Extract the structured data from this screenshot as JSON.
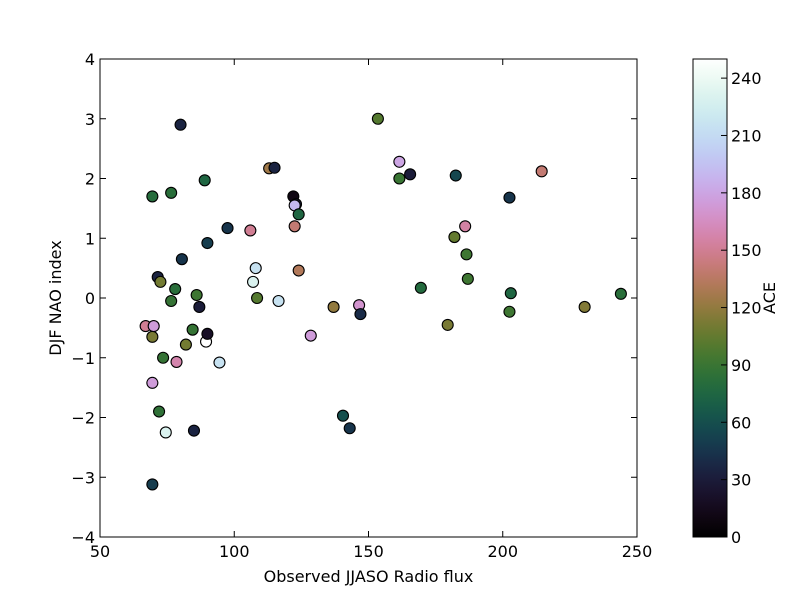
{
  "chart_data": {
    "type": "scatter",
    "xlabel": "Observed JJASO Radio flux",
    "ylabel": "DJF NAO index",
    "xlim": [
      50,
      250
    ],
    "ylim": [
      -4,
      4
    ],
    "xticks": [
      50,
      100,
      150,
      200,
      250
    ],
    "yticks": [
      -4,
      -3,
      -2,
      -1,
      0,
      1,
      2,
      3,
      4
    ],
    "grid": false,
    "colorbar": {
      "label": "ACE",
      "range": [
        0,
        250
      ],
      "ticks": [
        0,
        30,
        60,
        90,
        120,
        150,
        180,
        210,
        240
      ],
      "colormap": "cubehelix"
    },
    "points": [
      {
        "x": 67,
        "y": -0.47,
        "c": 150
      },
      {
        "x": 69.5,
        "y": -0.65,
        "c": 112
      },
      {
        "x": 70,
        "y": -0.47,
        "c": 175
      },
      {
        "x": 69.5,
        "y": -1.42,
        "c": 175
      },
      {
        "x": 69.5,
        "y": -3.12,
        "c": 50
      },
      {
        "x": 69.5,
        "y": 1.7,
        "c": 80
      },
      {
        "x": 71.5,
        "y": 0.35,
        "c": 35
      },
      {
        "x": 72.5,
        "y": 0.27,
        "c": 110
      },
      {
        "x": 72,
        "y": -1.9,
        "c": 85
      },
      {
        "x": 73.5,
        "y": -1.0,
        "c": 88
      },
      {
        "x": 74.5,
        "y": -2.25,
        "c": 230
      },
      {
        "x": 76.5,
        "y": -0.05,
        "c": 88
      },
      {
        "x": 76.5,
        "y": 1.76,
        "c": 82
      },
      {
        "x": 78,
        "y": 0.15,
        "c": 82
      },
      {
        "x": 78.5,
        "y": -1.07,
        "c": 158
      },
      {
        "x": 80,
        "y": 2.9,
        "c": 35
      },
      {
        "x": 80.5,
        "y": 0.65,
        "c": 45
      },
      {
        "x": 82,
        "y": -0.78,
        "c": 110
      },
      {
        "x": 84.5,
        "y": -0.53,
        "c": 88
      },
      {
        "x": 85,
        "y": -2.22,
        "c": 35
      },
      {
        "x": 86,
        "y": 0.05,
        "c": 92
      },
      {
        "x": 87,
        "y": -0.15,
        "c": 30
      },
      {
        "x": 89,
        "y": 1.97,
        "c": 75
      },
      {
        "x": 89.5,
        "y": -0.73,
        "c": 250
      },
      {
        "x": 90,
        "y": -0.6,
        "c": 20
      },
      {
        "x": 90,
        "y": 0.92,
        "c": 50
      },
      {
        "x": 94.5,
        "y": -1.08,
        "c": 215
      },
      {
        "x": 97.5,
        "y": 1.17,
        "c": 45
      },
      {
        "x": 106,
        "y": 1.13,
        "c": 150
      },
      {
        "x": 107,
        "y": 0.27,
        "c": 230
      },
      {
        "x": 108,
        "y": 0.5,
        "c": 215
      },
      {
        "x": 108.5,
        "y": 0.0,
        "c": 100
      },
      {
        "x": 113,
        "y": 2.17,
        "c": 125
      },
      {
        "x": 115,
        "y": 2.18,
        "c": 35
      },
      {
        "x": 116.5,
        "y": -0.05,
        "c": 215
      },
      {
        "x": 122,
        "y": 1.7,
        "c": 10
      },
      {
        "x": 122.5,
        "y": 1.2,
        "c": 140
      },
      {
        "x": 123,
        "y": 1.57,
        "c": 30
      },
      {
        "x": 122.5,
        "y": 1.55,
        "c": 190
      },
      {
        "x": 124,
        "y": 1.4,
        "c": 75
      },
      {
        "x": 124,
        "y": 0.46,
        "c": 132
      },
      {
        "x": 128.5,
        "y": -0.63,
        "c": 175
      },
      {
        "x": 137,
        "y": -0.15,
        "c": 120
      },
      {
        "x": 140.5,
        "y": -1.97,
        "c": 60
      },
      {
        "x": 143,
        "y": -2.18,
        "c": 45
      },
      {
        "x": 146.5,
        "y": -0.12,
        "c": 170
      },
      {
        "x": 147,
        "y": -0.27,
        "c": 40
      },
      {
        "x": 153.5,
        "y": 3.0,
        "c": 100
      },
      {
        "x": 161.5,
        "y": 2.28,
        "c": 180
      },
      {
        "x": 161.5,
        "y": 2.0,
        "c": 90
      },
      {
        "x": 165.5,
        "y": 2.07,
        "c": 30
      },
      {
        "x": 169.5,
        "y": 0.17,
        "c": 78
      },
      {
        "x": 179.5,
        "y": -0.45,
        "c": 112
      },
      {
        "x": 182,
        "y": 1.02,
        "c": 105
      },
      {
        "x": 182.5,
        "y": 2.05,
        "c": 55
      },
      {
        "x": 186,
        "y": 1.2,
        "c": 155
      },
      {
        "x": 186.5,
        "y": 0.73,
        "c": 92
      },
      {
        "x": 187,
        "y": 0.32,
        "c": 92
      },
      {
        "x": 202.5,
        "y": 1.68,
        "c": 45
      },
      {
        "x": 203,
        "y": 0.08,
        "c": 75
      },
      {
        "x": 202.5,
        "y": -0.23,
        "c": 92
      },
      {
        "x": 214.5,
        "y": 2.12,
        "c": 140
      },
      {
        "x": 230.5,
        "y": -0.15,
        "c": 115
      },
      {
        "x": 244,
        "y": 0.07,
        "c": 82
      }
    ]
  }
}
